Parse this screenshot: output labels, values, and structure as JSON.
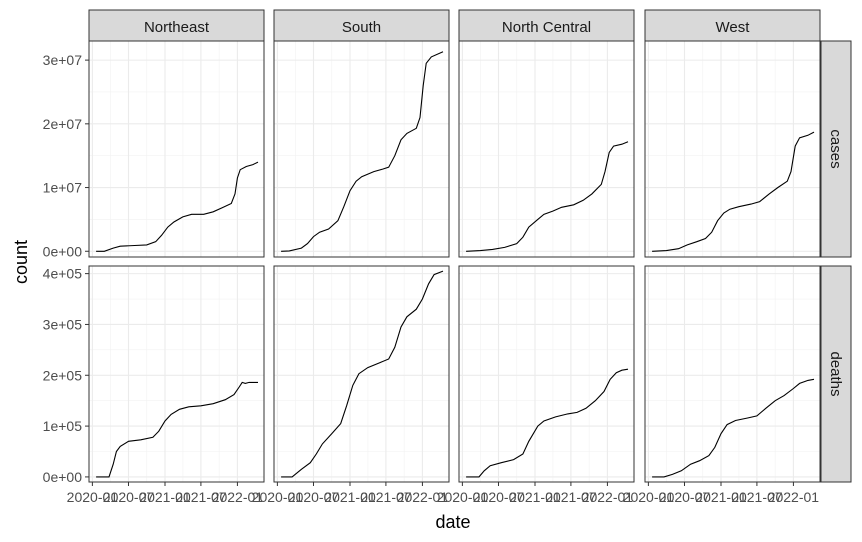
{
  "chart_data": {
    "type": "line",
    "facet_columns": [
      "Northeast",
      "South",
      "North Central",
      "West"
    ],
    "facet_rows": [
      "cases",
      "deaths"
    ],
    "xlabel": "date",
    "ylabel": "count",
    "x_tick_labels": [
      "2020-01",
      "2020-07",
      "2021-01",
      "2021-07",
      "2022-01"
    ],
    "x_range": [
      "2019-12-15",
      "2022-05-15"
    ],
    "rows": [
      {
        "name": "cases",
        "ylim": [
          -900000,
          33000000
        ],
        "y_ticks": [
          0,
          10000000,
          20000000,
          30000000
        ],
        "y_tick_labels": [
          "0e+00",
          "1e+07",
          "2e+07",
          "3e+07"
        ],
        "series": {
          "Northeast": [
            [
              "2020-01-20",
              0
            ],
            [
              "2020-03-01",
              0
            ],
            [
              "2020-04-15",
              500000
            ],
            [
              "2020-05-20",
              800000
            ],
            [
              "2020-08-01",
              900000
            ],
            [
              "2020-10-01",
              1000000
            ],
            [
              "2020-11-15",
              1500000
            ],
            [
              "2020-12-15",
              2500000
            ],
            [
              "2021-01-15",
              3800000
            ],
            [
              "2021-02-15",
              4600000
            ],
            [
              "2021-04-01",
              5400000
            ],
            [
              "2021-05-15",
              5800000
            ],
            [
              "2021-07-15",
              5800000
            ],
            [
              "2021-09-01",
              6200000
            ],
            [
              "2021-10-15",
              6800000
            ],
            [
              "2021-12-01",
              7500000
            ],
            [
              "2021-12-20",
              9000000
            ],
            [
              "2022-01-01",
              11500000
            ],
            [
              "2022-01-15",
              12800000
            ],
            [
              "2022-02-15",
              13300000
            ],
            [
              "2022-03-20",
              13600000
            ],
            [
              "2022-04-15",
              14000000
            ]
          ],
          "South": [
            [
              "2020-01-20",
              0
            ],
            [
              "2020-03-01",
              50000
            ],
            [
              "2020-05-01",
              500000
            ],
            [
              "2020-06-01",
              1200000
            ],
            [
              "2020-07-01",
              2300000
            ],
            [
              "2020-08-01",
              3000000
            ],
            [
              "2020-09-15",
              3500000
            ],
            [
              "2020-11-01",
              4800000
            ],
            [
              "2020-12-01",
              7000000
            ],
            [
              "2021-01-01",
              9500000
            ],
            [
              "2021-02-01",
              11000000
            ],
            [
              "2021-03-01",
              11700000
            ],
            [
              "2021-05-01",
              12500000
            ],
            [
              "2021-06-15",
              12900000
            ],
            [
              "2021-07-15",
              13200000
            ],
            [
              "2021-08-15",
              15000000
            ],
            [
              "2021-09-15",
              17500000
            ],
            [
              "2021-10-15",
              18500000
            ],
            [
              "2021-12-01",
              19300000
            ],
            [
              "2021-12-20",
              21000000
            ],
            [
              "2022-01-05",
              26000000
            ],
            [
              "2022-01-20",
              29500000
            ],
            [
              "2022-02-15",
              30500000
            ],
            [
              "2022-04-15",
              31300000
            ]
          ],
          "North Central": [
            [
              "2020-01-20",
              0
            ],
            [
              "2020-04-01",
              100000
            ],
            [
              "2020-06-01",
              300000
            ],
            [
              "2020-08-01",
              600000
            ],
            [
              "2020-10-01",
              1200000
            ],
            [
              "2020-11-01",
              2200000
            ],
            [
              "2020-12-01",
              3800000
            ],
            [
              "2021-01-15",
              5000000
            ],
            [
              "2021-02-15",
              5800000
            ],
            [
              "2021-04-01",
              6300000
            ],
            [
              "2021-05-15",
              6900000
            ],
            [
              "2021-07-15",
              7300000
            ],
            [
              "2021-09-01",
              8000000
            ],
            [
              "2021-10-15",
              9000000
            ],
            [
              "2021-12-01",
              10500000
            ],
            [
              "2021-12-20",
              12500000
            ],
            [
              "2022-01-10",
              15500000
            ],
            [
              "2022-02-01",
              16500000
            ],
            [
              "2022-03-15",
              16800000
            ],
            [
              "2022-04-15",
              17200000
            ]
          ],
          "West": [
            [
              "2020-01-20",
              0
            ],
            [
              "2020-04-01",
              100000
            ],
            [
              "2020-06-01",
              400000
            ],
            [
              "2020-07-15",
              1000000
            ],
            [
              "2020-09-01",
              1500000
            ],
            [
              "2020-10-15",
              2000000
            ],
            [
              "2020-11-15",
              3000000
            ],
            [
              "2020-12-15",
              4800000
            ],
            [
              "2021-01-15",
              6000000
            ],
            [
              "2021-02-15",
              6600000
            ],
            [
              "2021-04-01",
              7000000
            ],
            [
              "2021-06-01",
              7400000
            ],
            [
              "2021-07-15",
              7800000
            ],
            [
              "2021-09-01",
              9000000
            ],
            [
              "2021-10-15",
              10000000
            ],
            [
              "2021-12-01",
              11000000
            ],
            [
              "2021-12-20",
              12500000
            ],
            [
              "2022-01-10",
              16500000
            ],
            [
              "2022-02-01",
              17800000
            ],
            [
              "2022-03-15",
              18200000
            ],
            [
              "2022-04-15",
              18700000
            ]
          ]
        }
      },
      {
        "name": "deaths",
        "ylim": [
          -10000,
          415000
        ],
        "y_ticks": [
          0,
          100000,
          200000,
          300000,
          400000
        ],
        "y_tick_labels": [
          "0e+00",
          "1e+05",
          "2e+05",
          "3e+05",
          "4e+05"
        ],
        "series": {
          "Northeast": [
            [
              "2020-01-20",
              0
            ],
            [
              "2020-03-25",
              0
            ],
            [
              "2020-04-15",
              25000
            ],
            [
              "2020-05-01",
              50000
            ],
            [
              "2020-05-20",
              60000
            ],
            [
              "2020-07-01",
              70000
            ],
            [
              "2020-09-01",
              73000
            ],
            [
              "2020-11-01",
              78000
            ],
            [
              "2020-12-01",
              90000
            ],
            [
              "2021-01-01",
              110000
            ],
            [
              "2021-02-01",
              123000
            ],
            [
              "2021-03-15",
              133000
            ],
            [
              "2021-05-01",
              138000
            ],
            [
              "2021-07-01",
              140000
            ],
            [
              "2021-09-01",
              144000
            ],
            [
              "2021-11-01",
              152000
            ],
            [
              "2021-12-15",
              162000
            ],
            [
              "2022-01-10",
              177000
            ],
            [
              "2022-01-25",
              186000
            ],
            [
              "2022-02-10",
              184000
            ],
            [
              "2022-03-01",
              186000
            ],
            [
              "2022-04-15",
              186000
            ]
          ],
          "South": [
            [
              "2020-01-20",
              0
            ],
            [
              "2020-03-15",
              0
            ],
            [
              "2020-05-01",
              15000
            ],
            [
              "2020-06-15",
              28000
            ],
            [
              "2020-07-15",
              45000
            ],
            [
              "2020-08-15",
              65000
            ],
            [
              "2020-10-01",
              85000
            ],
            [
              "2020-11-15",
              105000
            ],
            [
              "2020-12-15",
              140000
            ],
            [
              "2021-01-15",
              180000
            ],
            [
              "2021-02-15",
              203000
            ],
            [
              "2021-04-01",
              215000
            ],
            [
              "2021-06-01",
              225000
            ],
            [
              "2021-07-15",
              232000
            ],
            [
              "2021-08-15",
              255000
            ],
            [
              "2021-09-15",
              295000
            ],
            [
              "2021-10-15",
              315000
            ],
            [
              "2021-12-01",
              330000
            ],
            [
              "2022-01-01",
              350000
            ],
            [
              "2022-02-01",
              380000
            ],
            [
              "2022-03-01",
              398000
            ],
            [
              "2022-04-15",
              405000
            ]
          ],
          "North Central": [
            [
              "2020-01-20",
              0
            ],
            [
              "2020-03-25",
              0
            ],
            [
              "2020-04-20",
              12000
            ],
            [
              "2020-05-20",
              22000
            ],
            [
              "2020-07-15",
              28000
            ],
            [
              "2020-09-15",
              34000
            ],
            [
              "2020-11-01",
              45000
            ],
            [
              "2020-12-01",
              70000
            ],
            [
              "2021-01-15",
              100000
            ],
            [
              "2021-02-15",
              110000
            ],
            [
              "2021-04-15",
              118000
            ],
            [
              "2021-06-15",
              124000
            ],
            [
              "2021-08-01",
              127000
            ],
            [
              "2021-09-15",
              135000
            ],
            [
              "2021-11-01",
              150000
            ],
            [
              "2021-12-15",
              168000
            ],
            [
              "2022-01-15",
              192000
            ],
            [
              "2022-02-15",
              205000
            ],
            [
              "2022-03-15",
              210000
            ],
            [
              "2022-04-15",
              212000
            ]
          ],
          "West": [
            [
              "2020-01-20",
              0
            ],
            [
              "2020-03-20",
              0
            ],
            [
              "2020-05-01",
              5000
            ],
            [
              "2020-06-15",
              12000
            ],
            [
              "2020-08-01",
              25000
            ],
            [
              "2020-09-15",
              32000
            ],
            [
              "2020-11-01",
              42000
            ],
            [
              "2020-12-01",
              58000
            ],
            [
              "2021-01-01",
              85000
            ],
            [
              "2021-02-01",
              103000
            ],
            [
              "2021-03-15",
              111000
            ],
            [
              "2021-05-15",
              116000
            ],
            [
              "2021-07-01",
              120000
            ],
            [
              "2021-08-15",
              135000
            ],
            [
              "2021-10-01",
              150000
            ],
            [
              "2021-11-15",
              160000
            ],
            [
              "2022-01-01",
              174000
            ],
            [
              "2022-02-01",
              184000
            ],
            [
              "2022-03-15",
              190000
            ],
            [
              "2022-04-15",
              192000
            ]
          ]
        }
      }
    ]
  }
}
